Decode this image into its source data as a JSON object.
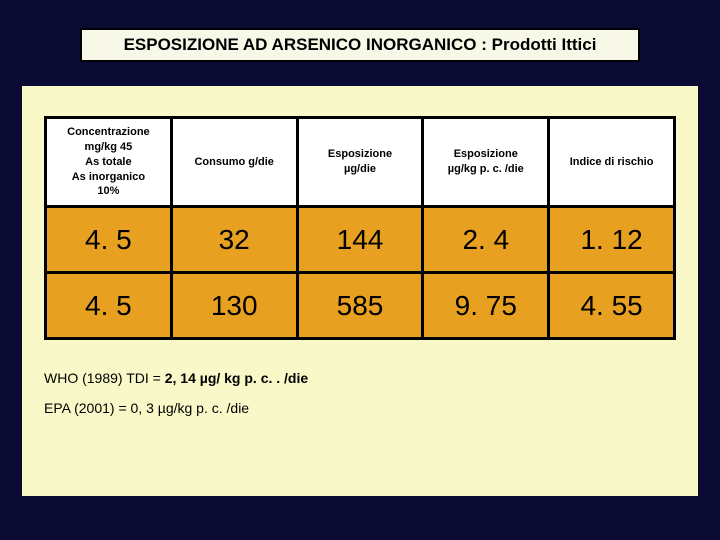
{
  "title": "ESPOSIZIONE AD ARSENICO INORGANICO : Prodotti Ittici",
  "table": {
    "columns": [
      "Concentrazione\nmg/kg 45\nAs  totale\nAs inorganico\n10%",
      "Consumo g/die",
      "Esposizione\nµg/die",
      "Esposizione\nµg/kg p. c. /die",
      "Indice di rischio"
    ],
    "rows": [
      [
        "4. 5",
        "32",
        "144",
        "2. 4",
        "1. 12"
      ],
      [
        "4. 5",
        "130",
        "585",
        "9. 75",
        "4. 55"
      ]
    ],
    "header_bg": "#ffffff",
    "cell_bg": "#e8a020",
    "border_color": "#000000",
    "header_fontsize": 11,
    "cell_fontsize": 28
  },
  "footnotes": {
    "line1_prefix": "WHO (1989) TDI = ",
    "line1_bold": "2, 14 µg/ kg p. c. . /die",
    "line2": "EPA (2001) = 0, 3 µg/kg p. c. /die"
  },
  "colors": {
    "page_bg": "#0a0a33",
    "panel_bg": "#f8f8c8",
    "title_bg": "#f8f8e8"
  }
}
